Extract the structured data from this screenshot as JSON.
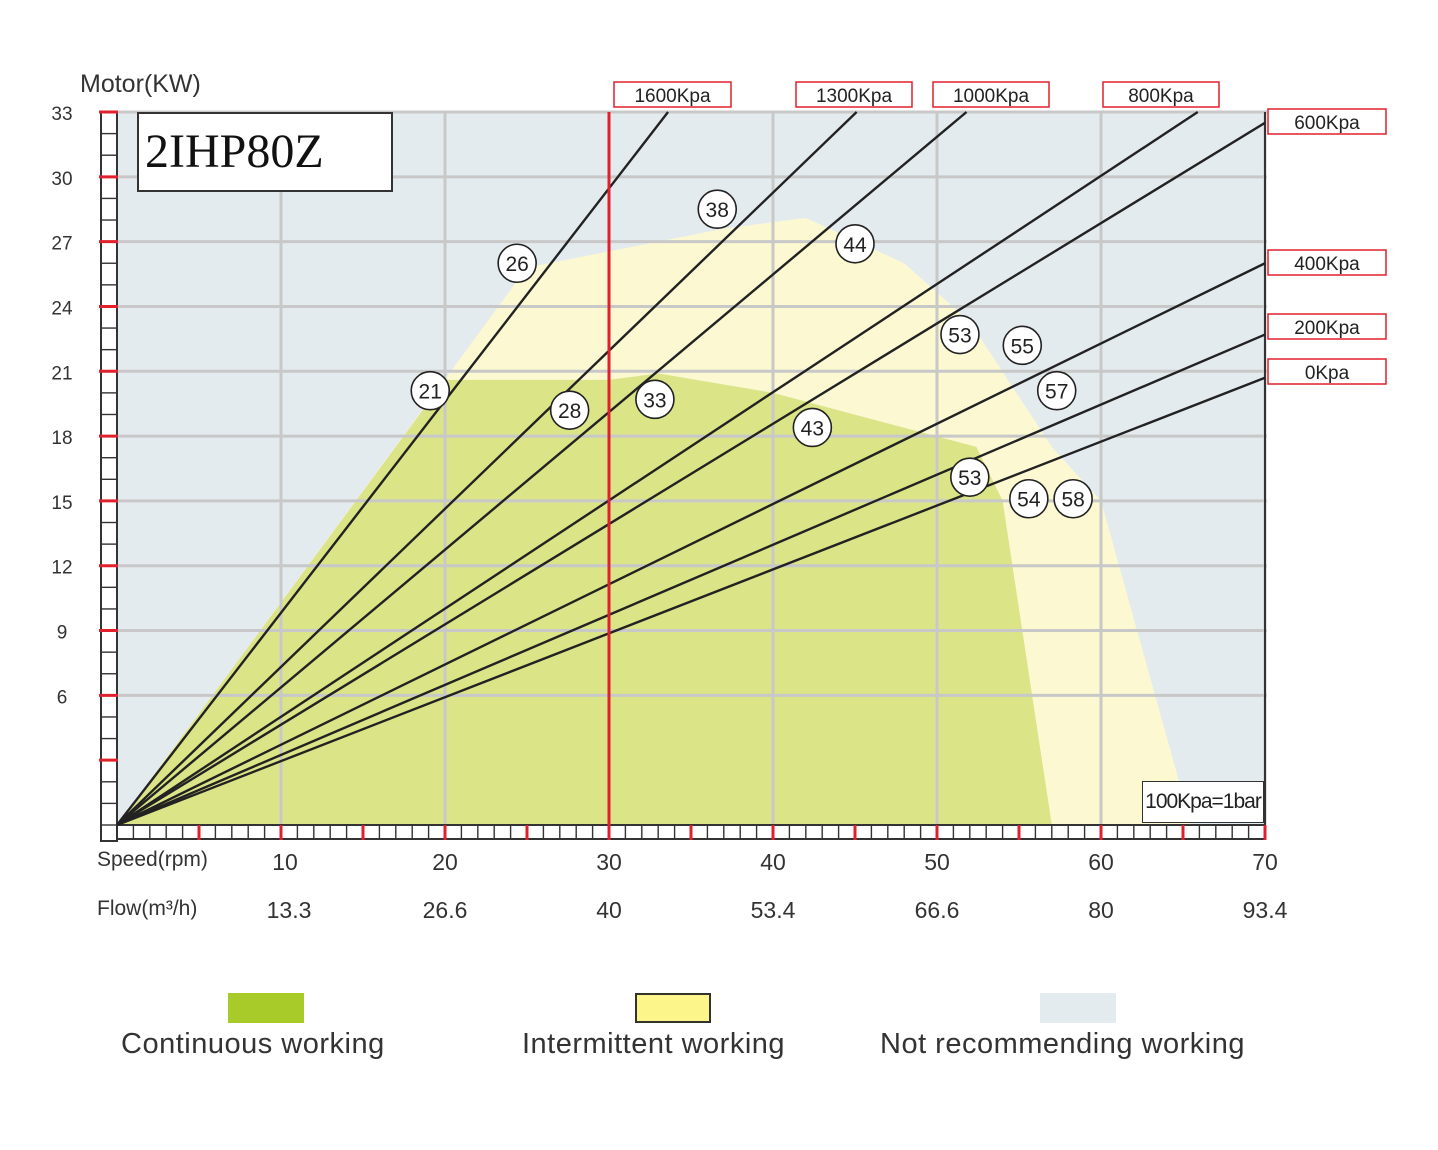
{
  "title": "2IHP80Z",
  "y_axis_title": "Motor(KW)",
  "x_row_labels": {
    "speed": "Speed(rpm)",
    "flow": "Flow(m³/h)"
  },
  "note": "100Kpa=1bar",
  "colors": {
    "continuous": "#dbe487",
    "intermittent": "#fbf8d2",
    "not_recommended": "#e4ebee",
    "grid": "#c8c8c8",
    "tick": "#e0202c",
    "limit_line": "#e0202c",
    "curve": "#222222"
  },
  "chart_data": {
    "type": "line",
    "title": "2IHP80Z",
    "xlabel": "Speed(rpm)",
    "ylabel": "Motor(KW)",
    "xlim": [
      0,
      70
    ],
    "ylim": [
      0,
      33
    ],
    "x_ticks": [
      10,
      20,
      30,
      40,
      50,
      60,
      70
    ],
    "x_tick_labels": [
      "10",
      "20",
      "30",
      "40",
      "50",
      "60",
      "70"
    ],
    "flow_tick_labels": [
      "13.3",
      "26.6",
      "40",
      "53.4",
      "66.6",
      "80",
      "93.4"
    ],
    "y_ticks": [
      6,
      9,
      12,
      15,
      18,
      21,
      24,
      27,
      30,
      33
    ],
    "y_tick_labels": [
      "6",
      "9",
      "12",
      "15",
      "18",
      "21",
      "24",
      "27",
      "30",
      "33"
    ],
    "grid": true,
    "speed_limit_line": 30,
    "series": [
      {
        "name": "1600Kpa",
        "x": [
          0,
          33.6
        ],
        "y": [
          0,
          33
        ]
      },
      {
        "name": "1300Kpa",
        "x": [
          0,
          45.1
        ],
        "y": [
          0,
          33
        ]
      },
      {
        "name": "1000Kpa",
        "x": [
          0,
          51.8
        ],
        "y": [
          0,
          33
        ]
      },
      {
        "name": "800Kpa",
        "x": [
          0,
          65.9
        ],
        "y": [
          0,
          33
        ]
      },
      {
        "name": "600Kpa",
        "x": [
          0,
          70
        ],
        "y": [
          0,
          32.5
        ]
      },
      {
        "name": "400Kpa",
        "x": [
          0,
          70
        ],
        "y": [
          0,
          26
        ]
      },
      {
        "name": "200Kpa",
        "x": [
          0,
          70
        ],
        "y": [
          0,
          22.7
        ]
      },
      {
        "name": "0Kpa",
        "x": [
          0,
          70
        ],
        "y": [
          0,
          20.7
        ]
      }
    ],
    "regions": [
      {
        "name": "Continuous working",
        "x": [
          0,
          20,
          30,
          33,
          40,
          52.4,
          54,
          57,
          0
        ],
        "y": [
          0,
          20.6,
          20.6,
          20.9,
          20,
          17.5,
          15,
          0,
          0
        ]
      },
      {
        "name": "Intermittent working",
        "x": [
          0,
          25,
          37,
          42,
          48,
          52,
          57,
          60,
          65.5,
          0
        ],
        "y": [
          0,
          25.8,
          27.6,
          28.1,
          26,
          23.3,
          17.5,
          15,
          0,
          0
        ]
      },
      {
        "name": "Not recommending working"
      }
    ],
    "annotations": [
      {
        "text": "21",
        "x": 19.1,
        "y": 20.1
      },
      {
        "text": "26",
        "x": 24.4,
        "y": 26.0
      },
      {
        "text": "28",
        "x": 27.6,
        "y": 19.2
      },
      {
        "text": "33",
        "x": 32.8,
        "y": 19.7
      },
      {
        "text": "38",
        "x": 36.6,
        "y": 28.5
      },
      {
        "text": "44",
        "x": 45.0,
        "y": 26.9
      },
      {
        "text": "43",
        "x": 42.4,
        "y": 18.4
      },
      {
        "text": "53",
        "x": 51.4,
        "y": 22.7
      },
      {
        "text": "55",
        "x": 55.2,
        "y": 22.2
      },
      {
        "text": "57",
        "x": 57.3,
        "y": 20.1
      },
      {
        "text": "53",
        "x": 52.0,
        "y": 16.1
      },
      {
        "text": "54",
        "x": 55.6,
        "y": 15.1
      },
      {
        "text": "58",
        "x": 58.3,
        "y": 15.1
      }
    ]
  },
  "legend": [
    {
      "label": "Continuous working",
      "color": "#a9cb2a"
    },
    {
      "label": "Intermittent working",
      "color": "#fbf58a"
    },
    {
      "label": "Not recommending working",
      "color": "#e4ebee"
    }
  ]
}
